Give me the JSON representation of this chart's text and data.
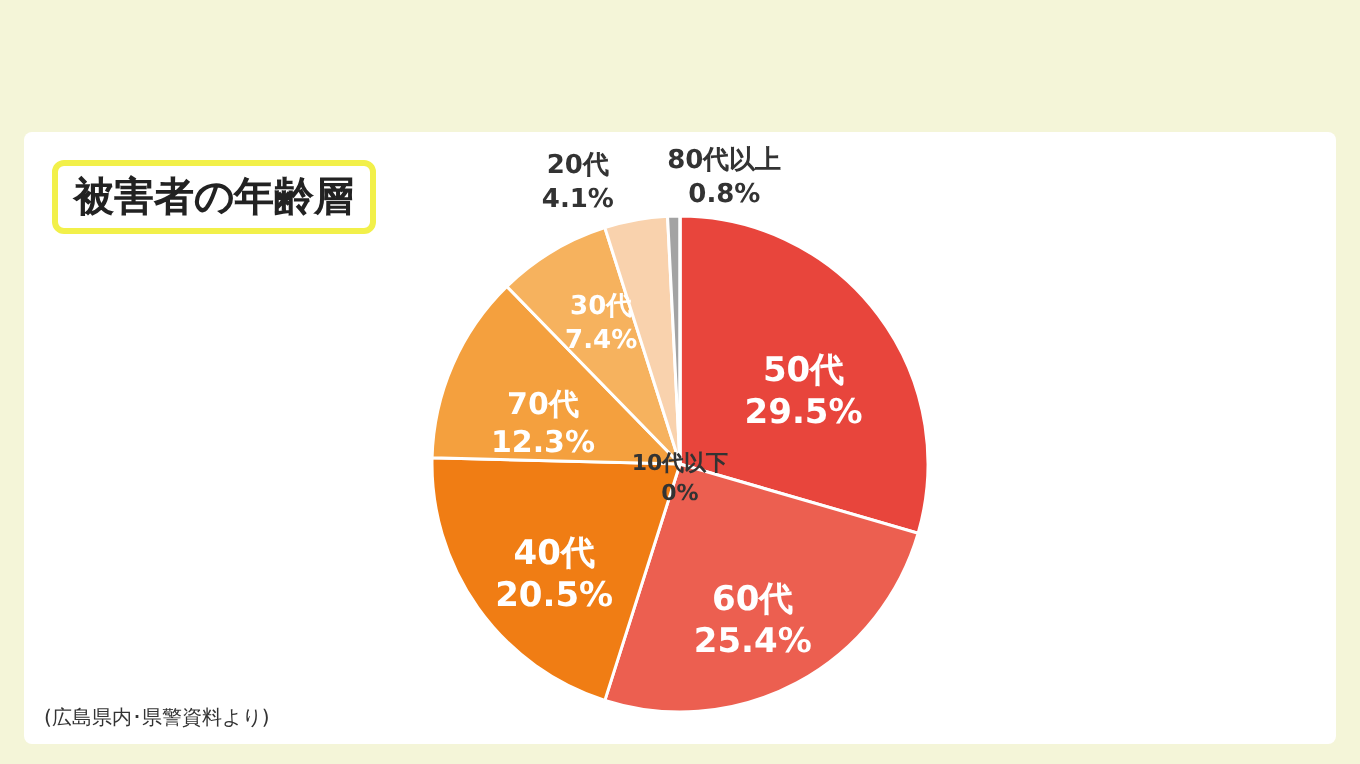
{
  "chart_data": {
    "type": "pie",
    "title": "被害者の年齢層",
    "categories": [
      "50代",
      "60代",
      "40代",
      "70代",
      "30代",
      "20代",
      "80代以上",
      "10代以下"
    ],
    "values": [
      29.5,
      25.4,
      20.5,
      12.3,
      7.4,
      4.1,
      0.8,
      0
    ],
    "colors": [
      "#e8453c",
      "#ec5f50",
      "#f07d14",
      "#f4a03e",
      "#f6b25e",
      "#f9d2ad",
      "#a3a3a3",
      "#ffffff"
    ],
    "value_labels": [
      "29.5%",
      "25.4%",
      "20.5%",
      "12.3%",
      "7.4%",
      "4.1%",
      "0.8%",
      "0%"
    ],
    "annotations": [
      "(広島県内･県警資料より)"
    ]
  }
}
